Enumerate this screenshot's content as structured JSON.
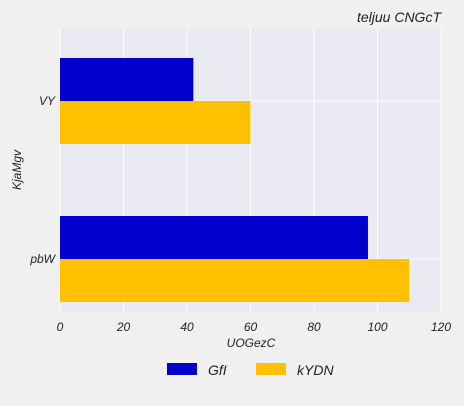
{
  "chart_data": {
    "type": "bar",
    "orientation": "horizontal",
    "title": "teljuu CNGcT",
    "xlabel": "UOGezC",
    "ylabel": "KjaMgv",
    "categories": [
      "VY",
      "pbW"
    ],
    "series": [
      {
        "name": "GfI",
        "values": [
          42,
          97
        ],
        "color": "#0000cc"
      },
      {
        "name": "kYDN",
        "values": [
          60,
          110
        ],
        "color": "#ffc000"
      }
    ],
    "xlim": [
      0,
      120
    ],
    "xticks": [
      0,
      20,
      40,
      60,
      80,
      100,
      120
    ],
    "grid": true,
    "legend_position": "bottom"
  }
}
